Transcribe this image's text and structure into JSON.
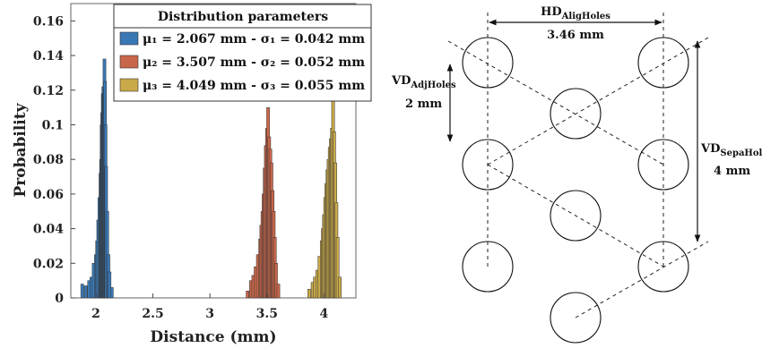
{
  "chart_data": [
    {
      "type": "bar",
      "xlabel": "Distance (mm)",
      "ylabel": "Probability",
      "xlim": [
        1.78,
        4.28
      ],
      "ylim": [
        0,
        0.17
      ],
      "xticks": [
        "2",
        "2.5",
        "3",
        "3.5",
        "4"
      ],
      "yticks": [
        "0",
        "0.02",
        "0.04",
        "0.06",
        "0.08",
        "0.1",
        "0.12",
        "0.14",
        "0.16"
      ],
      "grid": false,
      "legend": {
        "title": "Distribution parameters",
        "placement": "top-right",
        "entries": [
          "μ₁ = 2.067 mm - σ₁ = 0.042 mm",
          "μ₂ = 3.507 mm - σ₂ = 0.052 mm",
          "μ₃ = 4.049 mm - σ₃ = 0.055 mm"
        ]
      },
      "series": [
        {
          "mu": 2.067,
          "sigma": 0.042,
          "color": "#3a78b5",
          "x": [
            1.88,
            1.91,
            1.94,
            1.96,
            1.98,
            2.0,
            2.01,
            2.02,
            2.03,
            2.04,
            2.045,
            2.05,
            2.055,
            2.06,
            2.065,
            2.07,
            2.075,
            2.08,
            2.085,
            2.09,
            2.1,
            2.11,
            2.12,
            2.14
          ],
          "values": [
            0.008,
            0.007,
            0.01,
            0.012,
            0.02,
            0.025,
            0.033,
            0.045,
            0.058,
            0.072,
            0.08,
            0.1,
            0.107,
            0.118,
            0.122,
            0.118,
            0.138,
            0.125,
            0.1,
            0.076,
            0.05,
            0.025,
            0.015,
            0.006
          ]
        },
        {
          "mu": 3.507,
          "sigma": 0.052,
          "color": "#c8674a",
          "x": [
            3.33,
            3.36,
            3.38,
            3.4,
            3.42,
            3.44,
            3.45,
            3.46,
            3.47,
            3.48,
            3.49,
            3.5,
            3.51,
            3.52,
            3.53,
            3.54,
            3.55,
            3.56,
            3.57,
            3.58,
            3.6
          ],
          "values": [
            0.004,
            0.01,
            0.013,
            0.018,
            0.025,
            0.034,
            0.042,
            0.05,
            0.06,
            0.075,
            0.088,
            0.098,
            0.11,
            0.093,
            0.086,
            0.078,
            0.062,
            0.05,
            0.035,
            0.02,
            0.008
          ]
        },
        {
          "mu": 4.049,
          "sigma": 0.055,
          "color": "#c9a94a",
          "x": [
            3.87,
            3.9,
            3.92,
            3.94,
            3.96,
            3.98,
            3.99,
            4.0,
            4.01,
            4.02,
            4.03,
            4.04,
            4.05,
            4.06,
            4.07,
            4.08,
            4.09,
            4.1,
            4.11,
            4.12,
            4.14
          ],
          "values": [
            0.005,
            0.009,
            0.012,
            0.016,
            0.024,
            0.033,
            0.04,
            0.048,
            0.058,
            0.066,
            0.074,
            0.08,
            0.087,
            0.092,
            0.098,
            0.115,
            0.096,
            0.078,
            0.055,
            0.035,
            0.012
          ]
        }
      ]
    }
  ],
  "diagram": {
    "labels": [
      {
        "key": "hd",
        "main": "HD",
        "sub": "AligHoles",
        "value": "3.46 mm"
      },
      {
        "key": "vd_adj",
        "main": "VD",
        "sub": "AdjHoles",
        "value": "2 mm"
      },
      {
        "key": "vd_sepa",
        "main": "VD",
        "sub": "SepaHoles",
        "value": "4 mm"
      }
    ]
  }
}
